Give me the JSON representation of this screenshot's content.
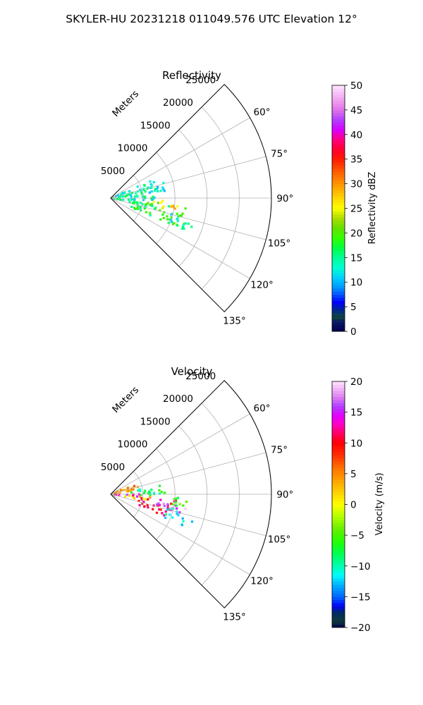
{
  "figure": {
    "suptitle": "SKYLER-HU  20231218  011049.576 UTC Elevation 12°"
  },
  "chart_data": [
    {
      "type": "heatmap",
      "title": "Reflectivity",
      "r_axis_label": "Meters",
      "r_ticks": [
        5000,
        10000,
        15000,
        20000,
        25000
      ],
      "r_tick_labels": [
        "5000",
        "10000",
        "15000",
        "20000",
        "25000"
      ],
      "theta_ticks_deg": [
        60,
        75,
        90,
        105,
        120,
        135
      ],
      "theta_tick_labels": [
        "60°",
        "75°",
        "90°",
        "105°",
        "120°",
        "135°"
      ],
      "theta_range_deg": [
        45,
        135
      ],
      "r_range": [
        0,
        25000
      ],
      "grid": true,
      "colorbar": {
        "label": "Reflectivity dBZ",
        "range": [
          0,
          50
        ],
        "ticks": [
          0,
          5,
          10,
          15,
          20,
          25,
          30,
          35,
          40,
          45,
          50
        ],
        "tick_labels": [
          "0",
          "5",
          "10",
          "15",
          "20",
          "25",
          "30",
          "35",
          "40",
          "45",
          "50"
        ],
        "colormap": "pyart_NWSRef"
      },
      "echo_regions": [
        {
          "theta_range": [
            67,
            104
          ],
          "r_range": [
            300,
            7200
          ],
          "value": 14
        },
        {
          "theta_range": [
            96,
            114
          ],
          "r_range": [
            3500,
            12500
          ],
          "value": 18
        },
        {
          "theta_range": [
            104,
            113
          ],
          "r_range": [
            9500,
            13500
          ],
          "value": 14
        },
        {
          "theta_range": [
            97,
            103
          ],
          "r_range": [
            6500,
            10500
          ],
          "value": 27
        },
        {
          "theta_range": [
            92,
            96
          ],
          "r_range": [
            5000,
            8500
          ],
          "value": 23
        },
        {
          "theta_range": [
            72,
            84
          ],
          "r_range": [
            6000,
            9000
          ],
          "value": 12
        }
      ]
    },
    {
      "type": "heatmap",
      "title": "Velocity",
      "r_axis_label": "Meters",
      "r_ticks": [
        5000,
        10000,
        15000,
        20000,
        25000
      ],
      "r_tick_labels": [
        "5000",
        "10000",
        "15000",
        "20000",
        "25000"
      ],
      "theta_ticks_deg": [
        60,
        75,
        90,
        105,
        120,
        135
      ],
      "theta_tick_labels": [
        "60°",
        "75°",
        "90°",
        "105°",
        "120°",
        "135°"
      ],
      "theta_range_deg": [
        45,
        135
      ],
      "r_range": [
        0,
        25000
      ],
      "grid": true,
      "colorbar": {
        "label": "Velocity (m/s)",
        "range": [
          -20,
          20
        ],
        "ticks": [
          -20,
          -15,
          -10,
          -5,
          0,
          5,
          10,
          15,
          20
        ],
        "tick_labels": [
          "−20",
          "−15",
          "−10",
          "−5",
          "0",
          "5",
          "10",
          "15",
          "20"
        ],
        "colormap": "pyart_BuDRd18"
      },
      "echo_regions": [
        {
          "theta_range": [
            66,
            82
          ],
          "r_range": [
            300,
            4500
          ],
          "value": 5
        },
        {
          "theta_range": [
            80,
            92
          ],
          "r_range": [
            3000,
            8500
          ],
          "value": -8
        },
        {
          "theta_range": [
            90,
            96
          ],
          "r_range": [
            400,
            4500
          ],
          "value": 14
        },
        {
          "theta_range": [
            94,
            100
          ],
          "r_range": [
            1500,
            6500
          ],
          "value": 2
        },
        {
          "theta_range": [
            96,
            112
          ],
          "r_range": [
            4500,
            10500
          ],
          "value": 11
        },
        {
          "theta_range": [
            100,
            106
          ],
          "r_range": [
            7000,
            12000
          ],
          "value": 17
        },
        {
          "theta_range": [
            103,
            114
          ],
          "r_range": [
            9000,
            13500
          ],
          "value": -11
        },
        {
          "theta_range": [
            93,
            101
          ],
          "r_range": [
            8500,
            12000
          ],
          "value": -5
        }
      ]
    }
  ]
}
